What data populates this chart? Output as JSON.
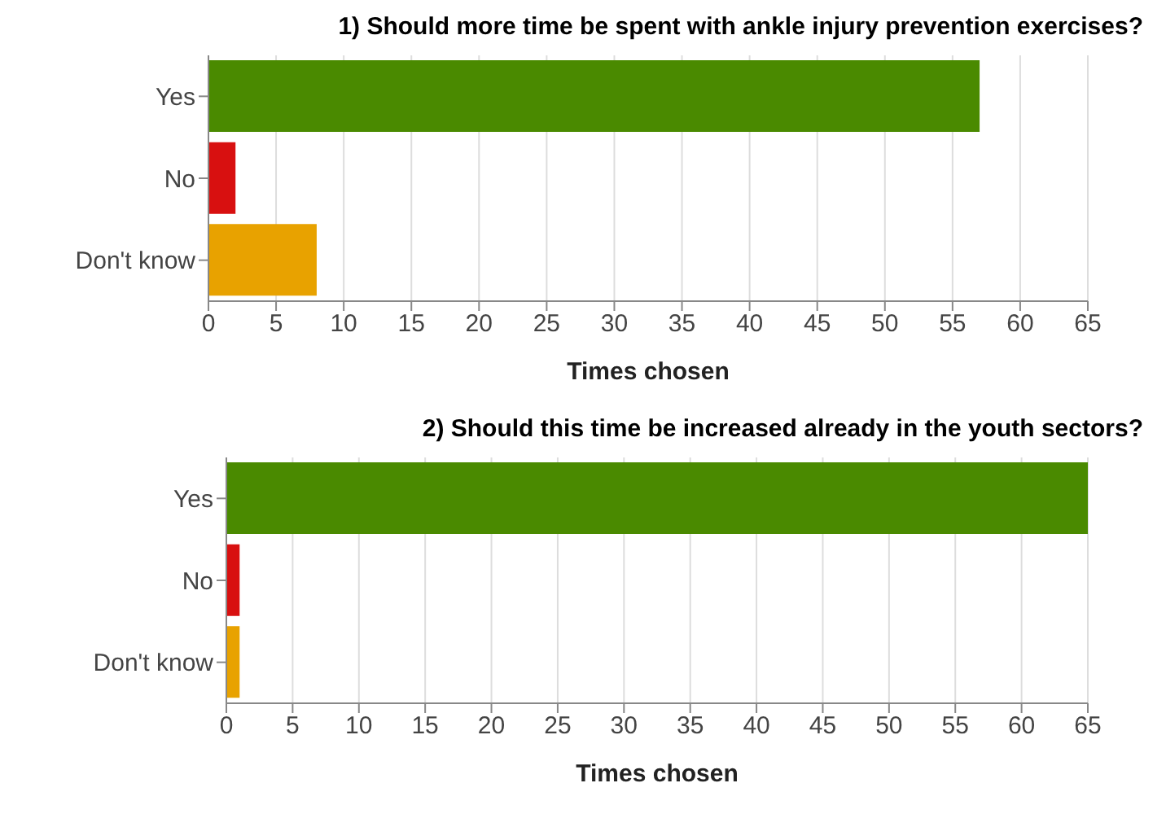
{
  "chart_data": [
    {
      "type": "bar",
      "orientation": "horizontal",
      "title": "1) Should more time be spent with ankle injury prevention exercises?",
      "xlabel": "Times chosen",
      "categories": [
        "Yes",
        "No",
        "Don't know"
      ],
      "values": [
        57,
        2,
        8
      ],
      "colors": [
        "#4a8a00",
        "#d81010",
        "#e8a200"
      ],
      "xlim": [
        0,
        65
      ],
      "xticks": [
        0,
        5,
        10,
        15,
        20,
        25,
        30,
        35,
        40,
        45,
        50,
        55,
        60,
        65
      ],
      "grid": "x"
    },
    {
      "type": "bar",
      "orientation": "horizontal",
      "title": "2) Should this time be increased already in the youth sectors?",
      "xlabel": "Times chosen",
      "categories": [
        "Yes",
        "No",
        "Don't know"
      ],
      "values": [
        65,
        1,
        1
      ],
      "colors": [
        "#4a8a00",
        "#d81010",
        "#e8a200"
      ],
      "xlim": [
        0,
        65
      ],
      "xticks": [
        0,
        5,
        10,
        15,
        20,
        25,
        30,
        35,
        40,
        45,
        50,
        55,
        60,
        65
      ],
      "grid": "x"
    }
  ]
}
